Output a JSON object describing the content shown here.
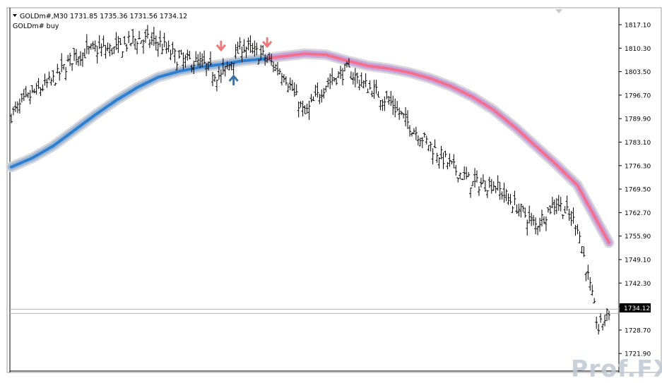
{
  "header": {
    "symbol_line": "GOLDm#,M30  1731.85 1735.36 1731.56 1734.12",
    "indicator_label": "GOLDm# buy"
  },
  "price_axis": {
    "ticks": [
      "1817.10",
      "1810.30",
      "1803.50",
      "1796.70",
      "1789.90",
      "1783.10",
      "1776.30",
      "1769.50",
      "1762.70",
      "1755.90",
      "1749.10",
      "1742.30",
      "1735.50",
      "1728.70",
      "1721.90"
    ],
    "current_price_label": "1734.12"
  },
  "watermark": {
    "text": "Prof.FX"
  },
  "colors": {
    "bullish_ma": "#2e7fd0",
    "bearish_ma": "#f36f8e",
    "ma_halo": "#d4d4d8",
    "buy_arrow": "#3a74a8",
    "sell_arrow": "#f07878",
    "candles": "#000000"
  },
  "chart_data": {
    "type": "line",
    "title": "GOLDm#,M30",
    "ylim": [
      1716.0,
      1820.0
    ],
    "grid": false,
    "last_close": 1734.12,
    "series": [
      {
        "role": "moving-average",
        "x": [
          0,
          10,
          20,
          30,
          40,
          50,
          60,
          70,
          80,
          90,
          100,
          110,
          120,
          130,
          140,
          150,
          160,
          170,
          180,
          190,
          200,
          210,
          220,
          230,
          240,
          250,
          260,
          270,
          280,
          285
        ],
        "values": [
          1775.9,
          1778.5,
          1782.0,
          1786.5,
          1791.0,
          1795.2,
          1798.9,
          1801.9,
          1803.6,
          1804.8,
          1805.6,
          1806.6,
          1807.2,
          1808.0,
          1808.7,
          1808.4,
          1806.7,
          1805.2,
          1804.4,
          1803.2,
          1801.5,
          1799.2,
          1796.2,
          1792.4,
          1787.5,
          1782.0,
          1776.5,
          1770.6,
          1759.5,
          1754.0
        ],
        "bullish_until_x": 121
      },
      {
        "role": "price-bars",
        "x": [
          0,
          10,
          20,
          30,
          40,
          50,
          60,
          70,
          80,
          90,
          100,
          110,
          120,
          130,
          140,
          150,
          160,
          170,
          180,
          190,
          200,
          210,
          220,
          230,
          240,
          250,
          260,
          270,
          280,
          285
        ],
        "values": [
          1791,
          1797,
          1801,
          1808,
          1810,
          1810,
          1813,
          1812,
          1807,
          1806,
          1802,
          1811,
          1808,
          1803,
          1791,
          1800,
          1804,
          1799,
          1795,
          1788,
          1782,
          1776,
          1771,
          1771,
          1765,
          1759,
          1766,
          1759,
          1729,
          1734
        ]
      }
    ],
    "markers": [
      {
        "type": "sell",
        "x": 100,
        "price": 1810.0
      },
      {
        "type": "buy",
        "x": 106,
        "price": 1802.0
      },
      {
        "type": "sell",
        "x": 122,
        "price": 1811.0
      }
    ]
  }
}
